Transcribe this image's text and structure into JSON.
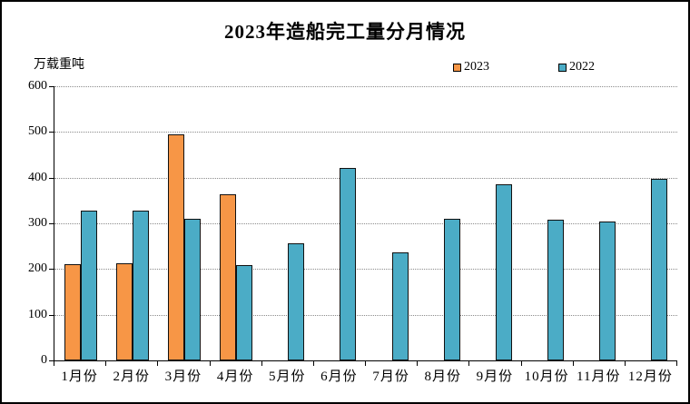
{
  "title": "2023年造船完工量分月情况",
  "y_axis_title": "万载重吨",
  "colors": {
    "series_2023": "#F79646",
    "series_2022": "#4BACC6",
    "bar_border": "#111111",
    "gridline": "#8c8c8c",
    "axis": "#000000"
  },
  "chart_data": {
    "type": "bar",
    "title": "2023年造船完工量分月情况",
    "ylabel": "万载重吨",
    "xlabel": "",
    "ylim": [
      0,
      600
    ],
    "ytick_step": 100,
    "yticks": [
      0,
      100,
      200,
      300,
      400,
      500,
      600
    ],
    "grid": "horizontal-dotted",
    "legend_position": "top-right",
    "categories": [
      "1月份",
      "2月份",
      "3月份",
      "4月份",
      "5月份",
      "6月份",
      "7月份",
      "8月份",
      "9月份",
      "10月份",
      "11月份",
      "12月份"
    ],
    "series": [
      {
        "name": "2023",
        "color": "#F79646",
        "values": [
          211,
          212,
          494,
          364,
          null,
          null,
          null,
          null,
          null,
          null,
          null,
          null
        ]
      },
      {
        "name": "2022",
        "color": "#4BACC6",
        "values": [
          327,
          328,
          309,
          209,
          257,
          421,
          236,
          310,
          386,
          308,
          304,
          397
        ]
      }
    ]
  }
}
